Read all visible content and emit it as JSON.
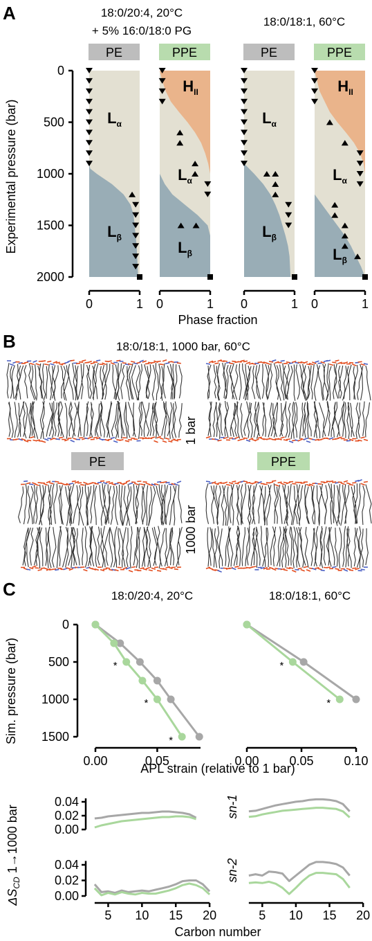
{
  "colors": {
    "PE": "#bdbdbd",
    "PPE": "#b8dcae",
    "L_alpha": "#e3e0d2",
    "L_beta": "#99adb6",
    "H_II": "#eab48b",
    "gray_line": "#a7a7a7",
    "green_line": "#a9d79c",
    "lipid_tail": "#333333",
    "lipid_head_o": "#e34b1c",
    "lipid_head_n": "#4a5fc4"
  },
  "panelA": {
    "letter": "A",
    "ylabel": "Experimental pressure (bar)",
    "xlabel": "Phase fraction",
    "group_titles": [
      {
        "lines": [
          "18:0/20:4, 20°C",
          "+ 5% 16:0/18:0 PG"
        ]
      },
      {
        "lines": [
          "18:0/18:1, 60°C"
        ]
      }
    ],
    "badges": [
      "PE",
      "PPE",
      "PE",
      "PPE"
    ],
    "phase_labels": {
      "La_main": "L",
      "La_sub": "α",
      "Lb_main": "L",
      "Lb_sub": "β",
      "H_main": "H",
      "H_sub": "II"
    }
  },
  "panelB": {
    "letter": "B",
    "title": "18:0/18:1, 1000 bar, 60°C",
    "row_labels": [
      "1 bar",
      "1000 bar"
    ],
    "badges": [
      "PE",
      "PPE"
    ]
  },
  "panelC": {
    "letter": "C",
    "titles": [
      "18:0/20:4, 20°C",
      "18:0/18:1, 60°C"
    ],
    "ylabel": "Sim. pressure (bar)",
    "xlabel": "APL strain (relative to 1 bar)",
    "bottom_ylabel_main": "ΔS",
    "bottom_ylabel_sub": "CD",
    "bottom_ylabel_tail": " 1→1000 bar",
    "bottom_xlabel": "Carbon number",
    "chain_labels": [
      "sn-1",
      "sn-2"
    ],
    "significance_marker": "*"
  },
  "chart_data": [
    {
      "type": "area",
      "panel": "A",
      "lipid": "18:0/20:4 + 5% 16:0/18:0 PG",
      "headgroup": "PE",
      "temperature": "20°C",
      "x_label": "Phase fraction",
      "y_label": "Experimental pressure (bar)",
      "xlim": [
        0,
        1
      ],
      "ylim": [
        0,
        2000
      ],
      "y_ticks": [
        0,
        500,
        1000,
        1500,
        2000
      ],
      "x_ticks": [
        0,
        1
      ],
      "phase_boundaries": [
        {
          "phases": [
            "Lα",
            "Lβ"
          ],
          "pressure": [
            900,
            950,
            1000,
            1100,
            1200,
            1300,
            1400,
            1500,
            1600,
            1700,
            1800,
            1900,
            2000
          ],
          "fraction": [
            0.0,
            0.02,
            0.15,
            0.45,
            0.68,
            0.82,
            0.88,
            0.9,
            0.92,
            0.94,
            0.95,
            0.96,
            0.97
          ]
        }
      ],
      "markers": [
        {
          "fraction": 0.0,
          "pressure": [
            0,
            100,
            200,
            300,
            400,
            500,
            600,
            700,
            800,
            900
          ]
        },
        {
          "fraction": 0.85,
          "pressure": [
            1200
          ]
        },
        {
          "fraction": 0.92,
          "pressure": [
            1300,
            1400,
            1500,
            1600,
            1700,
            1800,
            1900
          ]
        }
      ]
    },
    {
      "type": "area",
      "panel": "A",
      "lipid": "18:0/20:4 + 5% 16:0/18:0 PG",
      "headgroup": "PPE",
      "temperature": "20°C",
      "x_label": "Phase fraction",
      "y_label": "Experimental pressure (bar)",
      "xlim": [
        0,
        1
      ],
      "ylim": [
        0,
        2000
      ],
      "phase_boundaries": [
        {
          "phases": [
            "Lα",
            "HII"
          ],
          "pressure": [
            0,
            100,
            200,
            300,
            400,
            500,
            600,
            700,
            800,
            900,
            1000
          ],
          "fraction": [
            0.0,
            0.05,
            0.12,
            0.22,
            0.38,
            0.55,
            0.7,
            0.82,
            0.9,
            0.96,
            1.0
          ]
        },
        {
          "phases": [
            "Lα",
            "Lβ"
          ],
          "pressure": [
            1000,
            1100,
            1200,
            1300,
            1400,
            1500,
            1600,
            2000
          ],
          "fraction": [
            0.0,
            0.1,
            0.25,
            0.5,
            0.75,
            0.95,
            1.0,
            1.0
          ]
        }
      ],
      "markers": [
        {
          "fraction": 0.05,
          "pressure": [
            0,
            100,
            200,
            300
          ]
        },
        {
          "fraction": 0.4,
          "pressure": [
            600,
            700
          ]
        },
        {
          "fraction": 0.7,
          "pressure": [
            900,
            1000
          ]
        },
        {
          "fraction": 0.95,
          "pressure": [
            1100,
            1200
          ]
        },
        {
          "fraction": 0.42,
          "pressure": [
            1500
          ]
        },
        {
          "fraction": 0.72,
          "pressure": [
            1500
          ]
        }
      ]
    },
    {
      "type": "area",
      "panel": "A",
      "lipid": "18:0/18:1",
      "headgroup": "PE",
      "temperature": "60°C",
      "x_label": "Phase fraction",
      "y_label": "Experimental pressure (bar)",
      "xlim": [
        0,
        1
      ],
      "ylim": [
        0,
        2000
      ],
      "phase_boundaries": [
        {
          "phases": [
            "Lα",
            "Lβ"
          ],
          "pressure": [
            900,
            1000,
            1100,
            1200,
            1300,
            1400,
            1500,
            1600,
            1700,
            1800,
            2000
          ],
          "fraction": [
            0.0,
            0.2,
            0.38,
            0.52,
            0.62,
            0.7,
            0.76,
            0.82,
            0.87,
            0.9,
            0.92
          ]
        }
      ],
      "markers": [
        {
          "fraction": 0.0,
          "pressure": [
            0,
            100,
            200,
            300,
            400,
            500,
            600,
            700,
            800,
            900
          ]
        },
        {
          "fraction": 0.45,
          "pressure": [
            1000
          ]
        },
        {
          "fraction": 0.62,
          "pressure": [
            1000,
            1100,
            1200
          ]
        },
        {
          "fraction": 0.88,
          "pressure": [
            1300,
            1400,
            1500
          ]
        }
      ]
    },
    {
      "type": "area",
      "panel": "A",
      "lipid": "18:0/18:1",
      "headgroup": "PPE",
      "temperature": "60°C",
      "x_label": "Phase fraction",
      "y_label": "Experimental pressure (bar)",
      "xlim": [
        0,
        1
      ],
      "ylim": [
        0,
        2000
      ],
      "phase_boundaries": [
        {
          "phases": [
            "Lα",
            "HII"
          ],
          "pressure": [
            0,
            200,
            400,
            500,
            600,
            700,
            800,
            900,
            1000
          ],
          "fraction": [
            0.0,
            0.1,
            0.3,
            0.45,
            0.62,
            0.78,
            0.9,
            0.97,
            1.0
          ]
        },
        {
          "phases": [
            "Lα",
            "Lβ"
          ],
          "pressure": [
            1200,
            1300,
            1400,
            1500,
            1600,
            1700,
            1800,
            1900,
            2000
          ],
          "fraction": [
            0.0,
            0.15,
            0.3,
            0.45,
            0.6,
            0.72,
            0.82,
            0.92,
            1.0
          ]
        }
      ],
      "markers": [
        {
          "fraction": 0.0,
          "pressure": [
            0,
            100,
            200,
            300
          ]
        },
        {
          "fraction": 0.3,
          "pressure": [
            500
          ]
        },
        {
          "fraction": 0.6,
          "pressure": [
            700
          ]
        },
        {
          "fraction": 0.9,
          "pressure": [
            800,
            900,
            1000,
            1100
          ]
        },
        {
          "fraction": 0.4,
          "pressure": [
            1300,
            1400
          ]
        },
        {
          "fraction": 0.6,
          "pressure": [
            1500,
            1600,
            1700
          ]
        },
        {
          "fraction": 0.85,
          "pressure": [
            1800
          ]
        }
      ]
    },
    {
      "type": "line",
      "panel": "C",
      "title": "18:0/20:4, 20°C",
      "x_label": "APL strain (relative to 1 bar)",
      "y_label": "Sim. pressure (bar)",
      "xlim": [
        -0.01,
        0.09
      ],
      "ylim": [
        0,
        1600
      ],
      "x_ticks": [
        0.0,
        0.05
      ],
      "y_ticks": [
        0,
        500,
        1000,
        1500
      ],
      "y_inverted": true,
      "series": [
        {
          "name": "PE",
          "color": "gray",
          "x": [
            0.0,
            0.02,
            0.036,
            0.05,
            0.061,
            0.084
          ],
          "y": [
            0,
            250,
            500,
            750,
            1000,
            1500
          ]
        },
        {
          "name": "PPE",
          "color": "green",
          "x": [
            0.0,
            0.015,
            0.025,
            0.038,
            0.05,
            0.07
          ],
          "y": [
            0,
            250,
            500,
            750,
            1000,
            1500
          ]
        }
      ],
      "significance_at": [
        500,
        1000,
        1500
      ]
    },
    {
      "type": "line",
      "panel": "C",
      "title": "18:0/18:1, 60°C",
      "x_label": "APL strain (relative to 1 bar)",
      "y_label": "Sim. pressure (bar)",
      "xlim": [
        -0.01,
        0.115
      ],
      "ylim": [
        0,
        1600
      ],
      "x_ticks": [
        0.0,
        0.05,
        0.1
      ],
      "y_inverted": true,
      "series": [
        {
          "name": "PE",
          "color": "gray",
          "x": [
            0.0,
            0.052,
            0.1
          ],
          "y": [
            0,
            500,
            1000
          ]
        },
        {
          "name": "PPE",
          "color": "green",
          "x": [
            0.0,
            0.042,
            0.085
          ],
          "y": [
            0,
            500,
            1000
          ]
        }
      ],
      "significance_at": [
        500,
        1000
      ]
    },
    {
      "type": "line",
      "panel": "C",
      "title": "18:0/20:4 sn-1",
      "x_label": "Carbon number",
      "y_label": "ΔS_CD 1→1000 bar",
      "xlim": [
        2,
        21
      ],
      "ylim": [
        0,
        0.045
      ],
      "y_ticks": [
        0.0,
        0.02,
        0.04
      ],
      "series": [
        {
          "name": "PE",
          "color": "gray",
          "x": [
            3,
            4,
            5,
            6,
            7,
            8,
            9,
            10,
            11,
            12,
            13,
            14,
            15,
            16,
            17,
            18
          ],
          "y": [
            0.016,
            0.017,
            0.019,
            0.02,
            0.021,
            0.022,
            0.023,
            0.024,
            0.024,
            0.025,
            0.026,
            0.026,
            0.025,
            0.024,
            0.022,
            0.017
          ]
        },
        {
          "name": "PPE",
          "color": "green",
          "x": [
            3,
            4,
            5,
            6,
            7,
            8,
            9,
            10,
            11,
            12,
            13,
            14,
            15,
            16,
            17,
            18
          ],
          "y": [
            0.003,
            0.006,
            0.008,
            0.01,
            0.012,
            0.013,
            0.014,
            0.015,
            0.016,
            0.017,
            0.018,
            0.018,
            0.019,
            0.019,
            0.018,
            0.015
          ]
        }
      ]
    },
    {
      "type": "line",
      "panel": "C",
      "title": "18:0/18:1 sn-1",
      "x_label": "Carbon number",
      "xlim": [
        2,
        21
      ],
      "ylim": [
        0,
        0.055
      ],
      "series": [
        {
          "name": "PE",
          "color": "gray",
          "x": [
            3,
            4,
            5,
            6,
            7,
            8,
            9,
            10,
            11,
            12,
            13,
            14,
            15,
            16,
            17,
            18
          ],
          "y": [
            0.03,
            0.031,
            0.034,
            0.037,
            0.04,
            0.042,
            0.044,
            0.046,
            0.047,
            0.049,
            0.05,
            0.05,
            0.049,
            0.047,
            0.042,
            0.03
          ]
        },
        {
          "name": "PPE",
          "color": "green",
          "x": [
            3,
            4,
            5,
            6,
            7,
            8,
            9,
            10,
            11,
            12,
            13,
            14,
            15,
            16,
            17,
            18
          ],
          "y": [
            0.021,
            0.022,
            0.025,
            0.027,
            0.029,
            0.031,
            0.032,
            0.033,
            0.034,
            0.035,
            0.036,
            0.036,
            0.035,
            0.034,
            0.03,
            0.02
          ]
        }
      ]
    },
    {
      "type": "line",
      "panel": "C",
      "title": "18:0/20:4 sn-2",
      "x_label": "Carbon number",
      "xlim": [
        2,
        21
      ],
      "ylim": [
        0,
        0.045
      ],
      "series": [
        {
          "name": "PE",
          "color": "gray",
          "x": [
            3,
            4,
            5,
            6,
            7,
            8,
            9,
            10,
            11,
            12,
            13,
            14,
            15,
            16,
            17,
            18,
            19,
            20
          ],
          "y": [
            0.015,
            0.005,
            0.006,
            0.004,
            0.007,
            0.005,
            0.006,
            0.007,
            0.006,
            0.008,
            0.01,
            0.012,
            0.015,
            0.019,
            0.02,
            0.02,
            0.015,
            0.006
          ]
        },
        {
          "name": "PPE",
          "color": "green",
          "x": [
            3,
            4,
            5,
            6,
            7,
            8,
            9,
            10,
            11,
            12,
            13,
            14,
            15,
            16,
            17,
            18,
            19,
            20
          ],
          "y": [
            0.01,
            0.001,
            0.004,
            0.002,
            0.005,
            0.003,
            0.002,
            0.004,
            0.003,
            0.003,
            0.005,
            0.007,
            0.01,
            0.014,
            0.016,
            0.014,
            0.01,
            0.002
          ]
        }
      ]
    },
    {
      "type": "line",
      "panel": "C",
      "title": "18:0/18:1 sn-2",
      "x_label": "Carbon number",
      "xlim": [
        2,
        21
      ],
      "ylim": [
        0,
        0.055
      ],
      "series": [
        {
          "name": "PE",
          "color": "gray",
          "x": [
            3,
            4,
            5,
            6,
            7,
            8,
            9,
            10,
            11,
            12,
            13,
            14,
            15,
            16,
            17,
            18
          ],
          "y": [
            0.03,
            0.032,
            0.03,
            0.036,
            0.035,
            0.033,
            0.022,
            0.03,
            0.038,
            0.046,
            0.05,
            0.05,
            0.049,
            0.047,
            0.042,
            0.03
          ]
        },
        {
          "name": "PPE",
          "color": "green",
          "x": [
            3,
            4,
            5,
            6,
            7,
            8,
            9,
            10,
            11,
            12,
            13,
            14,
            15,
            16,
            17,
            18
          ],
          "y": [
            0.019,
            0.02,
            0.019,
            0.021,
            0.018,
            0.012,
            0.003,
            0.012,
            0.022,
            0.03,
            0.034,
            0.034,
            0.033,
            0.032,
            0.025,
            0.012
          ]
        }
      ]
    }
  ]
}
